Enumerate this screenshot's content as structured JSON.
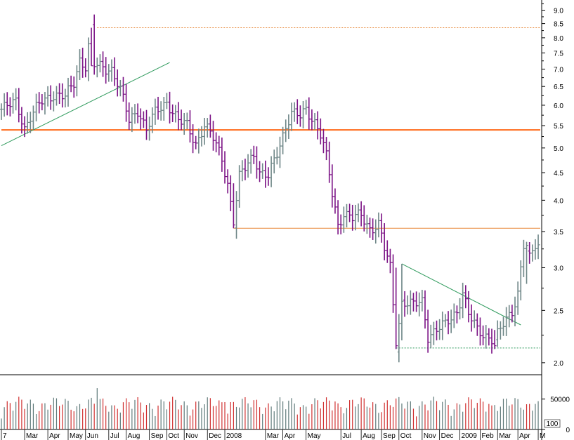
{
  "chart_data": {
    "type": "ohlc",
    "scale": "log",
    "grid": false,
    "ylim": [
      1.9,
      9.4
    ],
    "y_ticks": [
      {
        "value": 2.0,
        "label": "2.0"
      },
      {
        "value": 2.5,
        "label": "2.5"
      },
      {
        "value": 3.0,
        "label": "3.0"
      },
      {
        "value": 3.5,
        "label": "3.5"
      },
      {
        "value": 4.0,
        "label": "4.0"
      },
      {
        "value": 4.5,
        "label": "4.5"
      },
      {
        "value": 5.0,
        "label": "5.0"
      },
      {
        "value": 5.5,
        "label": "5.5"
      },
      {
        "value": 6.0,
        "label": "6.0"
      },
      {
        "value": 6.5,
        "label": "6.5"
      },
      {
        "value": 7.0,
        "label": "7.0"
      },
      {
        "value": 7.5,
        "label": "7.5"
      },
      {
        "value": 8.0,
        "label": "8.0"
      },
      {
        "value": 8.5,
        "label": "8.5"
      },
      {
        "value": 9.0,
        "label": "9.0"
      }
    ],
    "x_ticks": [
      {
        "week": 0,
        "label": "7"
      },
      {
        "week": 8,
        "label": "Mar"
      },
      {
        "week": 16,
        "label": "Apr"
      },
      {
        "week": 23,
        "label": "May"
      },
      {
        "week": 29,
        "label": "Jun"
      },
      {
        "week": 37,
        "label": "Jul"
      },
      {
        "week": 43,
        "label": "Aug"
      },
      {
        "week": 51,
        "label": "Sep"
      },
      {
        "week": 57,
        "label": "Oct"
      },
      {
        "week": 63,
        "label": "Nov"
      },
      {
        "week": 71,
        "label": "Dec"
      },
      {
        "week": 77,
        "label": "2008"
      },
      {
        "week": 91,
        "label": "Mar"
      },
      {
        "week": 97,
        "label": "Apr"
      },
      {
        "week": 105,
        "label": "May"
      },
      {
        "week": 117,
        "label": "Jul"
      },
      {
        "week": 124,
        "label": "Aug"
      },
      {
        "week": 131,
        "label": "Sep"
      },
      {
        "week": 137,
        "label": "Oct"
      },
      {
        "week": 145,
        "label": "Nov"
      },
      {
        "week": 151,
        "label": "Dec"
      },
      {
        "week": 158,
        "label": "2009"
      },
      {
        "week": 165,
        "label": "Feb"
      },
      {
        "week": 171,
        "label": "Mar"
      },
      {
        "week": 178,
        "label": "Apr"
      },
      {
        "week": 185,
        "label": "M"
      }
    ],
    "weeks": 186,
    "anchors": [
      [
        0,
        5.9
      ],
      [
        2,
        5.95
      ],
      [
        5,
        6.1
      ],
      [
        8,
        5.45
      ],
      [
        10,
        5.7
      ],
      [
        14,
        6.1
      ],
      [
        18,
        6.3
      ],
      [
        22,
        6.2
      ],
      [
        25,
        6.6
      ],
      [
        27,
        7.3
      ],
      [
        29,
        7.1
      ],
      [
        31,
        8.3
      ],
      [
        32,
        7.1
      ],
      [
        38,
        7.0
      ],
      [
        41,
        6.4
      ],
      [
        44,
        5.6
      ],
      [
        47,
        5.9
      ],
      [
        50,
        5.4
      ],
      [
        53,
        5.8
      ],
      [
        57,
        6.1
      ],
      [
        61,
        5.6
      ],
      [
        64,
        5.5
      ],
      [
        67,
        5.1
      ],
      [
        70,
        5.5
      ],
      [
        73,
        5.2
      ],
      [
        76,
        4.8
      ],
      [
        78,
        4.3
      ],
      [
        80,
        3.6
      ],
      [
        82,
        4.4
      ],
      [
        85,
        4.7
      ],
      [
        87,
        4.9
      ],
      [
        89,
        4.5
      ],
      [
        92,
        4.4
      ],
      [
        95,
        4.9
      ],
      [
        98,
        5.5
      ],
      [
        100,
        5.8
      ],
      [
        103,
        5.7
      ],
      [
        105,
        5.9
      ],
      [
        108,
        5.6
      ],
      [
        110,
        5.3
      ],
      [
        112,
        4.8
      ],
      [
        114,
        4.1
      ],
      [
        116,
        3.6
      ],
      [
        118,
        3.8
      ],
      [
        121,
        3.7
      ],
      [
        124,
        3.75
      ],
      [
        127,
        3.55
      ],
      [
        130,
        3.6
      ],
      [
        132,
        3.25
      ],
      [
        134,
        3.0
      ],
      [
        136,
        2.15
      ],
      [
        138,
        2.6
      ],
      [
        142,
        2.55
      ],
      [
        145,
        2.6
      ],
      [
        147,
        2.25
      ],
      [
        150,
        2.3
      ],
      [
        153,
        2.35
      ],
      [
        157,
        2.5
      ],
      [
        159,
        2.7
      ],
      [
        161,
        2.45
      ],
      [
        164,
        2.3
      ],
      [
        167,
        2.25
      ],
      [
        170,
        2.2
      ],
      [
        172,
        2.3
      ],
      [
        174,
        2.4
      ],
      [
        176,
        2.5
      ],
      [
        178,
        2.7
      ],
      [
        180,
        3.3
      ],
      [
        182,
        3.1
      ],
      [
        184,
        3.3
      ]
    ],
    "weekly_ohlc": [
      {
        "week": 31,
        "high": 8.35,
        "low": 7.1,
        "close": 7.1
      },
      {
        "week": 80,
        "high": 4.3,
        "low": 3.55,
        "close": 3.6
      },
      {
        "week": 136,
        "high": 3.0,
        "low": 2.12,
        "close": 2.15
      },
      {
        "week": 138,
        "high": 3.05,
        "low": 2.2,
        "close": 2.6
      },
      {
        "week": 170,
        "high": 2.3,
        "low": 2.12,
        "close": 2.15
      },
      {
        "week": 181,
        "high": 3.35,
        "low": 2.8,
        "close": 3.3
      }
    ],
    "lines": [
      {
        "name": "",
        "type": "horizontal",
        "value": 5.4,
        "from_week": 0,
        "to_week": 186,
        "color": "#ff6a1a",
        "style": "solid",
        "width": 2
      },
      {
        "name": "",
        "type": "horizontal",
        "value": 3.55,
        "from_week": 80,
        "to_week": 186,
        "color": "#e8893a",
        "style": "solid",
        "width": 1
      },
      {
        "name": "",
        "type": "horizontal",
        "value": 8.35,
        "from_week": 33,
        "to_week": 186,
        "color": "#e8893a",
        "style": "dotted",
        "width": 1
      },
      {
        "name": "",
        "type": "horizontal",
        "value": 2.13,
        "from_week": 136,
        "to_week": 186,
        "color": "#2e9a5c",
        "style": "dotted",
        "width": 1
      },
      {
        "name": "",
        "type": "trend",
        "from": [
          0,
          5.05
        ],
        "to": [
          58,
          7.2
        ],
        "color": "#2e9a5c",
        "style": "solid",
        "width": 1
      },
      {
        "name": "",
        "type": "trend",
        "from": [
          138,
          3.05
        ],
        "to": [
          179,
          2.35
        ],
        "color": "#2e9a5c",
        "style": "solid",
        "width": 1
      }
    ],
    "colors": {
      "up": "#6e8687",
      "down": "#7b1285",
      "volume_up": "#5f7a7a",
      "volume_down": "#d03030"
    },
    "volume": {
      "ylim": [
        0,
        90000
      ],
      "y_ticks": [
        {
          "value": 50000,
          "label": "50000"
        },
        {
          "value": 0,
          "label": "0"
        }
      ],
      "badge": "100"
    }
  }
}
